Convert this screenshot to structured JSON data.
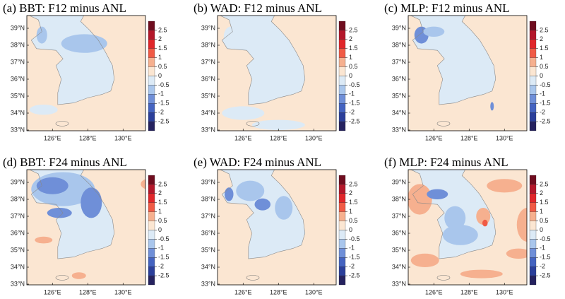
{
  "panels": [
    {
      "title": "(a) BBT: F12 minus ANL"
    },
    {
      "title": "(b) WAD: F12 minus ANL"
    },
    {
      "title": "(c) MLP: F12 minus ANL"
    },
    {
      "title": "(d) BBT: F24 minus ANL"
    },
    {
      "title": "(e) WAD: F24 minus ANL"
    },
    {
      "title": "(f) MLP: F24 minus ANL"
    }
  ],
  "lat_labels": [
    "39°N",
    "38°N",
    "37°N",
    "36°N",
    "35°N",
    "34°N",
    "33°N"
  ],
  "lon_labels": [
    "126°E",
    "128°E",
    "130°E"
  ],
  "colorbar": {
    "ticks": [
      2.5,
      2,
      1.5,
      1,
      0.5,
      0,
      -0.5,
      -1,
      -1.5,
      -2,
      -2.5
    ],
    "colors": [
      "#6f0d1f",
      "#b3172a",
      "#e0262a",
      "#f05a45",
      "#f6b08f",
      "#fbe6d2",
      "#dceaf6",
      "#a9c6ec",
      "#6f8fd8",
      "#4463c0",
      "#2b3f9a",
      "#25225f"
    ]
  }
}
